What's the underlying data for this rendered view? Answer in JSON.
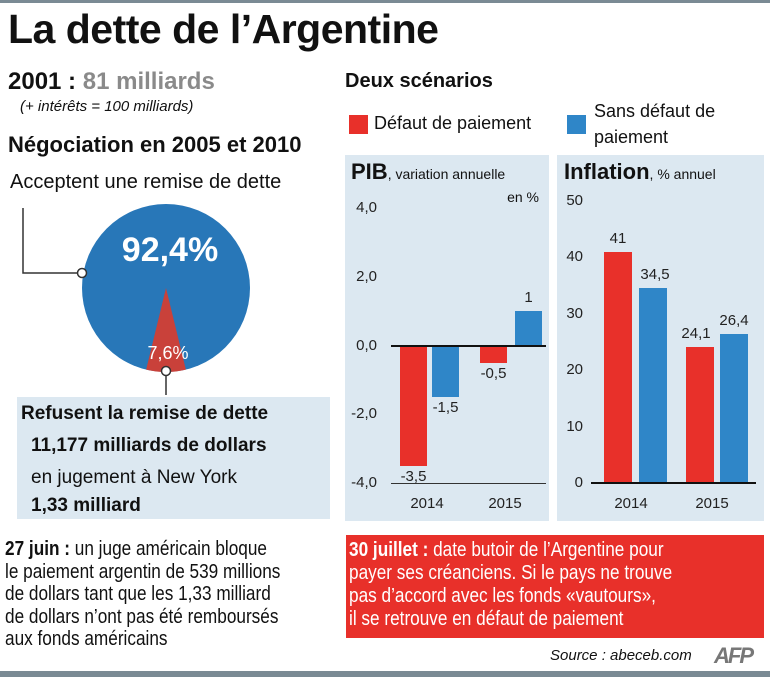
{
  "title": "La dette de l’Argentine",
  "debt": {
    "year_label": "2001 :",
    "amount": "81 milliards",
    "note": "(+ intérêts = 100 milliards)"
  },
  "negotiation": {
    "heading": "Négociation en 2005 et 2010",
    "accept_label": "Acceptent une remise de dette"
  },
  "refuse_box": {
    "line1": "Refusent la remise de dette",
    "line2": "11,177 milliards de dollars",
    "line3": "en jugement à New York",
    "line4": "1,33 milliard"
  },
  "scenarios": {
    "heading": "Deux scénarios",
    "legend": [
      {
        "label": "Défaut de paiement",
        "color": "#e8302a"
      },
      {
        "label_line1": "Sans défaut de",
        "label_line2": "paiement",
        "color": "#2f86c8"
      }
    ]
  },
  "colors": {
    "red": "#e8302a",
    "blue": "#2f86c8",
    "panel": "#dce8f1",
    "pie_blue": "#2877b8",
    "pie_red": "#c9413a"
  },
  "chart_data": [
    {
      "type": "pie",
      "values": [
        92.4,
        7.6
      ],
      "labels": [
        "92,4%",
        "7,6%"
      ],
      "colors": [
        "#2877b8",
        "#c9413a"
      ]
    },
    {
      "type": "bar",
      "title": "PIB",
      "subtitle": ", variation annuelle",
      "unit": "en %",
      "categories": [
        "2014",
        "2015"
      ],
      "series": [
        {
          "name": "Défaut de paiement",
          "values": [
            -3.5,
            -0.5
          ],
          "labels": [
            "-3,5",
            "-0,5"
          ]
        },
        {
          "name": "Sans défaut de paiement",
          "values": [
            -1.5,
            1
          ],
          "labels": [
            "-1,5",
            "1"
          ]
        }
      ],
      "ylim": [
        -4,
        4
      ],
      "yticks": [
        4,
        2,
        0,
        -2,
        -4
      ],
      "ytick_labels": [
        "4,0",
        "2,0",
        "0,0",
        "-2,0",
        "-4,0"
      ]
    },
    {
      "type": "bar",
      "title": "Inflation",
      "subtitle": ",  % annuel",
      "categories": [
        "2014",
        "2015"
      ],
      "series": [
        {
          "name": "Défaut de paiement",
          "values": [
            41,
            24.1
          ],
          "labels": [
            "41",
            "24,1"
          ]
        },
        {
          "name": "Sans défaut de paiement",
          "values": [
            34.5,
            26.4
          ],
          "labels": [
            "34,5",
            "26,4"
          ]
        }
      ],
      "ylim": [
        0,
        50
      ],
      "yticks": [
        50,
        40,
        30,
        20,
        10,
        0
      ],
      "ytick_labels": [
        "50",
        "40",
        "30",
        "20",
        "10",
        "0"
      ]
    }
  ],
  "june": {
    "date": "27 juin :",
    "text1": " un juge américain bloque",
    "text2": "le paiement argentin de 539 millions",
    "text3": "de dollars tant que les 1,33 milliard",
    "text4": "de dollars n’ont pas été remboursés",
    "text5": "aux fonds américains"
  },
  "july": {
    "date": "30 juillet :",
    "text1": " date butoir de l’Argentine pour",
    "text2": "payer ses créanciens. Si le pays ne trouve",
    "text3": "pas d’accord avec les fonds «vautours»,",
    "text4": "il se retrouve en défaut de paiement"
  },
  "source": "Source : abeceb.com",
  "logo": "AFP"
}
